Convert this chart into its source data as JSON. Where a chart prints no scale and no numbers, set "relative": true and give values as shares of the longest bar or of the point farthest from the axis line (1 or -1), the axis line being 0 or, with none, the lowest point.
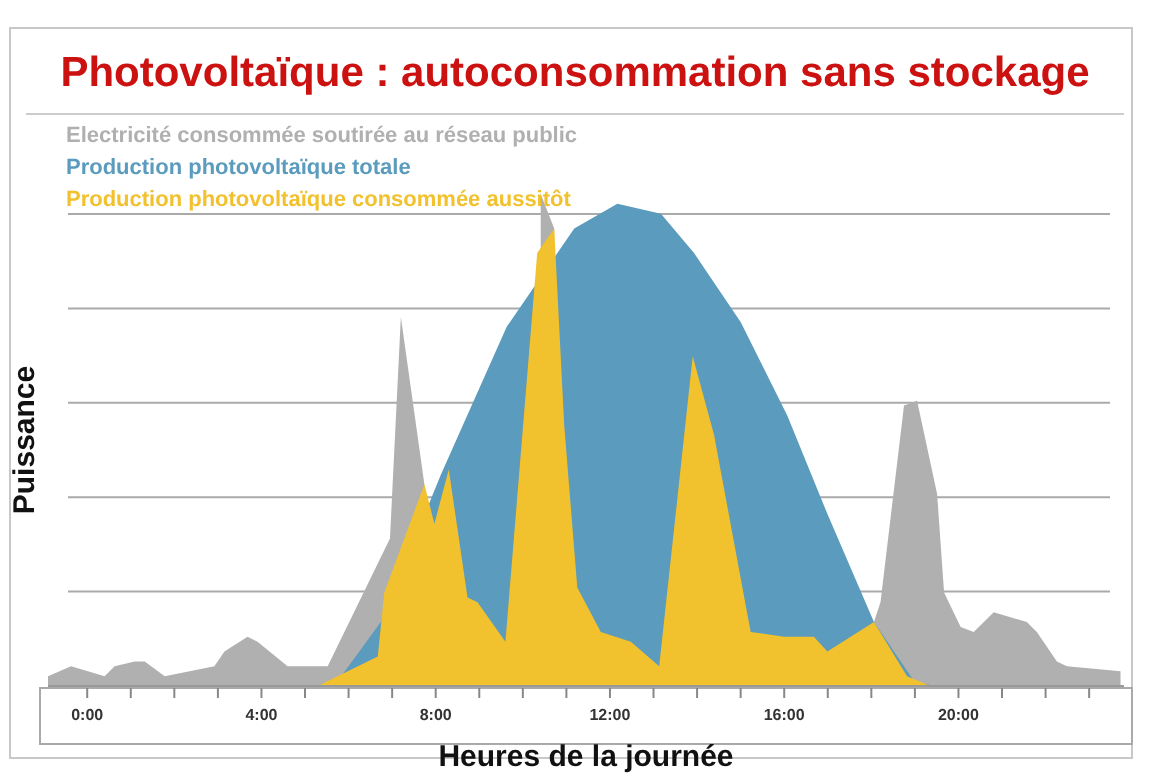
{
  "chart_data": {
    "type": "area",
    "title": "Photovoltaïque : autoconsommation sans stockage",
    "xlabel": "Heures de la journée",
    "ylabel": "Puissance",
    "relative": true,
    "grid": true,
    "legend": "top left",
    "xlim": [
      -0.9,
      23.8
    ],
    "xticks": [
      {
        "value": 0,
        "label": "0:00"
      },
      {
        "value": 1,
        "label": null
      },
      {
        "value": 2,
        "label": null
      },
      {
        "value": 3,
        "label": null
      },
      {
        "value": 4,
        "label": "4:00"
      },
      {
        "value": 5,
        "label": null
      },
      {
        "value": 6,
        "label": null
      },
      {
        "value": 7,
        "label": null
      },
      {
        "value": 8,
        "label": "8:00"
      },
      {
        "value": 9,
        "label": null
      },
      {
        "value": 10,
        "label": null
      },
      {
        "value": 11,
        "label": null
      },
      {
        "value": 12,
        "label": "12:00"
      },
      {
        "value": 13,
        "label": null
      },
      {
        "value": 14,
        "label": null
      },
      {
        "value": 15,
        "label": null
      },
      {
        "value": 16,
        "label": "16:00"
      },
      {
        "value": 17,
        "label": null
      },
      {
        "value": 18,
        "label": null
      },
      {
        "value": 19,
        "label": null
      },
      {
        "value": 20,
        "label": "20:00"
      },
      {
        "value": 21,
        "label": null
      },
      {
        "value": 22,
        "label": null
      },
      {
        "value": 23,
        "label": null
      }
    ],
    "series": [
      {
        "name": "Electricité consommée soutirée au réseau public",
        "color": "#b0b0b0",
        "x": [
          -0.9,
          -0.37,
          0.4,
          0.63,
          1.09,
          1.32,
          1.78,
          2.92,
          3.15,
          3.68,
          3.91,
          4.6,
          5.52,
          6.95,
          7.2,
          7.74,
          7.97,
          8.3,
          8.73,
          8.96,
          9.6,
          10.23,
          10.41,
          10.72,
          10.95,
          11.25,
          11.79,
          12.48,
          13.13,
          13.9,
          14.39,
          15.23,
          16,
          16.68,
          16.99,
          18.06,
          18.21,
          18.75,
          19.05,
          19.51,
          19.67,
          20.05,
          20.35,
          20.81,
          21.57,
          21.8,
          22.26,
          22.49,
          23.72
        ],
        "values": [
          0.02,
          0.04,
          0.02,
          0.04,
          0.05,
          0.05,
          0.02,
          0.04,
          0.07,
          0.1,
          0.09,
          0.04,
          0.04,
          0.3,
          0.75,
          0.41,
          null,
          null,
          null,
          null,
          null,
          null,
          1,
          0.93,
          null,
          null,
          null,
          null,
          null,
          null,
          null,
          null,
          null,
          null,
          null,
          0.13,
          0.17,
          0.57,
          0.58,
          0.39,
          0.19,
          0.12,
          0.11,
          0.15,
          0.13,
          0.11,
          0.05,
          0.04,
          0.03
        ]
      },
      {
        "name": "Production photovoltaïque totale",
        "color": "#5b9bbd",
        "x": [
          5.28,
          5.83,
          6.74,
          8.12,
          9.63,
          11.18,
          12.17,
          13.17,
          13.93,
          15,
          16.07,
          16.99,
          18.06,
          18.98,
          19.44
        ],
        "values": [
          0,
          0.02,
          0.13,
          0.43,
          0.73,
          0.93,
          0.98,
          0.96,
          0.88,
          0.74,
          0.55,
          0.35,
          0.13,
          0.01,
          0
        ]
      },
      {
        "name": "Production photovoltaïque consommée aussitôt",
        "color": "#f2c12e",
        "x": [
          5.29,
          6.67,
          6.82,
          7.74,
          7.97,
          8.3,
          8.73,
          8.96,
          9.6,
          10.33,
          10.72,
          10.95,
          11.25,
          11.79,
          12.48,
          13.13,
          13.9,
          14.39,
          15.23,
          16,
          16.68,
          16.99,
          18.06,
          18.82,
          19.36
        ],
        "values": [
          0,
          0.06,
          0.19,
          0.41,
          0.33,
          0.44,
          0.18,
          0.17,
          0.09,
          0.88,
          0.93,
          0.53,
          0.2,
          0.11,
          0.09,
          0.04,
          0.67,
          0.51,
          0.11,
          0.1,
          0.1,
          0.07,
          0.13,
          0.02,
          0
        ]
      }
    ]
  }
}
